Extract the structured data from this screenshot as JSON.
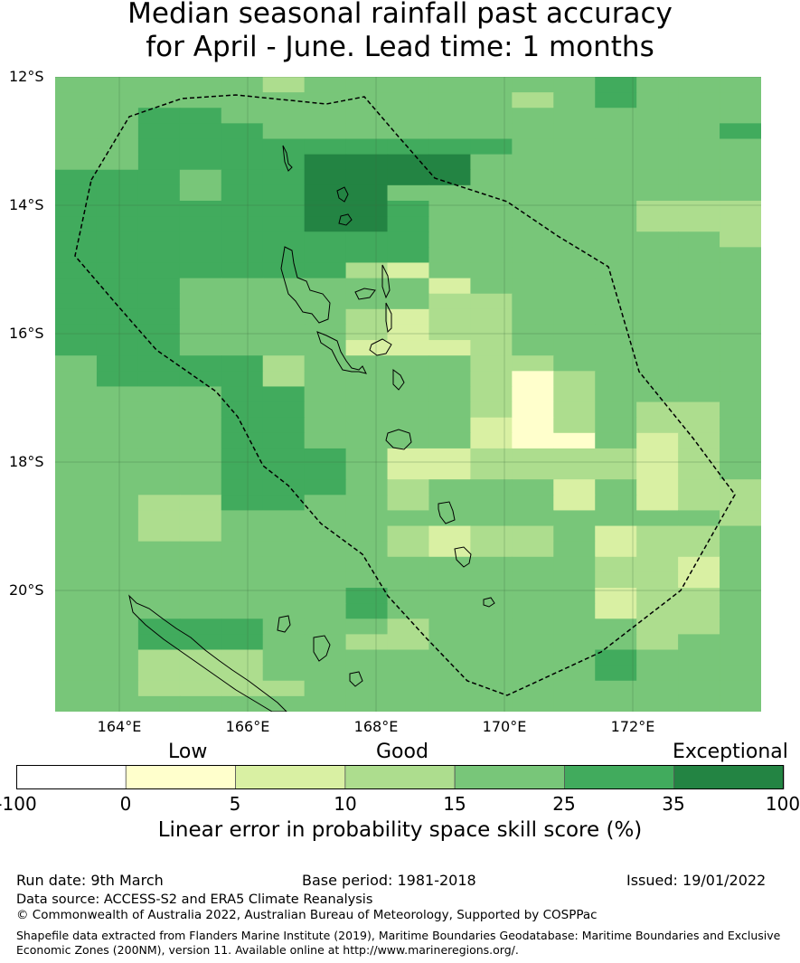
{
  "title": {
    "line1": "Median seasonal rainfall past accuracy",
    "line2": "for April - June. Lead time: 1 months"
  },
  "map": {
    "lat_labels": [
      "12°S",
      "14°S",
      "16°S",
      "18°S",
      "20°S"
    ],
    "lon_labels": [
      "164°E",
      "166°E",
      "168°E",
      "170°E",
      "172°E"
    ],
    "grid_lon_start": 163.0,
    "grid_lat_start": -11.5,
    "cell_deg": 0.83,
    "skill_grid": [
      [
        25,
        25,
        25,
        25,
        25,
        15,
        25,
        25,
        25,
        25,
        25,
        25,
        25,
        35,
        25,
        25,
        25
      ],
      [
        25,
        25,
        25,
        25,
        25,
        25,
        25,
        25,
        25,
        25,
        25,
        15,
        25,
        35,
        25,
        25,
        25
      ],
      [
        25,
        25,
        35,
        35,
        25,
        25,
        25,
        25,
        25,
        25,
        25,
        25,
        25,
        25,
        25,
        25,
        25
      ],
      [
        25,
        25,
        35,
        35,
        35,
        25,
        25,
        25,
        25,
        25,
        25,
        25,
        25,
        25,
        25,
        25,
        35
      ],
      [
        25,
        25,
        35,
        35,
        35,
        35,
        35,
        35,
        35,
        35,
        35,
        25,
        25,
        25,
        25,
        25,
        25
      ],
      [
        25,
        25,
        35,
        35,
        35,
        35,
        100,
        100,
        100,
        100,
        25,
        25,
        25,
        25,
        25,
        25,
        25
      ],
      [
        35,
        35,
        35,
        25,
        35,
        35,
        100,
        100,
        100,
        100,
        25,
        25,
        25,
        25,
        25,
        25,
        25
      ],
      [
        35,
        35,
        35,
        25,
        35,
        35,
        100,
        100,
        25,
        25,
        25,
        25,
        25,
        25,
        25,
        25,
        25
      ],
      [
        35,
        35,
        35,
        35,
        35,
        35,
        100,
        100,
        35,
        25,
        25,
        25,
        25,
        25,
        15,
        15,
        15
      ],
      [
        35,
        35,
        35,
        35,
        35,
        35,
        100,
        100,
        35,
        25,
        25,
        25,
        25,
        25,
        15,
        15,
        15
      ],
      [
        35,
        35,
        35,
        35,
        35,
        35,
        35,
        35,
        35,
        25,
        25,
        25,
        25,
        25,
        25,
        25,
        15
      ],
      [
        35,
        35,
        35,
        35,
        35,
        35,
        35,
        35,
        35,
        25,
        25,
        25,
        25,
        25,
        25,
        25,
        25
      ],
      [
        35,
        35,
        35,
        35,
        35,
        35,
        35,
        15,
        10,
        25,
        25,
        25,
        25,
        25,
        25,
        25,
        25
      ],
      [
        35,
        35,
        35,
        25,
        25,
        25,
        25,
        25,
        25,
        10,
        25,
        25,
        25,
        25,
        25,
        25,
        25
      ],
      [
        35,
        35,
        35,
        25,
        25,
        25,
        25,
        25,
        25,
        15,
        15,
        25,
        25,
        25,
        25,
        25,
        25
      ],
      [
        35,
        35,
        35,
        25,
        25,
        25,
        25,
        15,
        10,
        15,
        15,
        25,
        25,
        25,
        25,
        25,
        25
      ],
      [
        35,
        35,
        35,
        25,
        25,
        25,
        25,
        15,
        10,
        15,
        15,
        25,
        25,
        25,
        25,
        25,
        25
      ],
      [
        35,
        35,
        35,
        25,
        25,
        25,
        25,
        10,
        10,
        10,
        15,
        25,
        25,
        25,
        25,
        25,
        25
      ],
      [
        25,
        35,
        35,
        35,
        35,
        15,
        25,
        25,
        25,
        25,
        15,
        15,
        25,
        25,
        25,
        25,
        25
      ],
      [
        25,
        35,
        35,
        35,
        35,
        15,
        25,
        25,
        25,
        25,
        15,
        5,
        15,
        25,
        25,
        25,
        25
      ],
      [
        25,
        25,
        25,
        25,
        35,
        35,
        25,
        25,
        25,
        25,
        15,
        5,
        15,
        25,
        25,
        25,
        25
      ],
      [
        25,
        25,
        25,
        25,
        35,
        35,
        25,
        25,
        25,
        25,
        15,
        5,
        15,
        25,
        15,
        15,
        25
      ],
      [
        25,
        25,
        25,
        25,
        35,
        35,
        25,
        25,
        25,
        25,
        10,
        5,
        15,
        25,
        15,
        15,
        25
      ],
      [
        25,
        25,
        25,
        25,
        35,
        35,
        25,
        25,
        25,
        25,
        10,
        5,
        5,
        25,
        10,
        15,
        25
      ],
      [
        25,
        25,
        25,
        25,
        35,
        35,
        35,
        25,
        10,
        10,
        15,
        15,
        15,
        15,
        10,
        15,
        25
      ],
      [
        25,
        25,
        25,
        25,
        35,
        35,
        35,
        25,
        10,
        10,
        15,
        15,
        15,
        15,
        10,
        15,
        25
      ],
      [
        25,
        25,
        25,
        25,
        35,
        35,
        35,
        25,
        15,
        25,
        25,
        25,
        10,
        25,
        10,
        15,
        15
      ],
      [
        25,
        25,
        15,
        15,
        35,
        35,
        25,
        25,
        15,
        25,
        25,
        25,
        10,
        25,
        10,
        15,
        15
      ],
      [
        25,
        25,
        15,
        15,
        25,
        25,
        25,
        25,
        25,
        25,
        25,
        25,
        25,
        25,
        25,
        25,
        15
      ],
      [
        25,
        25,
        15,
        15,
        25,
        25,
        25,
        25,
        15,
        10,
        15,
        15,
        25,
        10,
        15,
        15,
        25
      ],
      [
        25,
        25,
        25,
        25,
        25,
        25,
        25,
        25,
        15,
        10,
        15,
        15,
        25,
        10,
        15,
        15,
        25
      ],
      [
        25,
        25,
        25,
        25,
        25,
        25,
        25,
        25,
        25,
        25,
        25,
        25,
        25,
        15,
        15,
        10,
        25
      ],
      [
        25,
        25,
        25,
        25,
        25,
        25,
        25,
        25,
        25,
        25,
        25,
        25,
        25,
        15,
        15,
        10,
        25
      ],
      [
        25,
        25,
        25,
        25,
        25,
        25,
        25,
        35,
        25,
        25,
        25,
        25,
        25,
        10,
        15,
        15,
        25
      ],
      [
        25,
        25,
        25,
        25,
        25,
        25,
        25,
        35,
        25,
        25,
        25,
        25,
        25,
        10,
        15,
        15,
        25
      ],
      [
        25,
        25,
        35,
        35,
        35,
        25,
        25,
        25,
        15,
        25,
        25,
        25,
        25,
        25,
        15,
        15,
        25
      ],
      [
        25,
        25,
        35,
        35,
        35,
        25,
        25,
        15,
        15,
        25,
        25,
        25,
        25,
        25,
        15,
        25,
        25
      ],
      [
        25,
        25,
        15,
        15,
        15,
        25,
        25,
        25,
        25,
        25,
        25,
        25,
        25,
        35,
        25,
        25,
        25
      ],
      [
        25,
        25,
        15,
        15,
        15,
        25,
        25,
        25,
        25,
        25,
        25,
        25,
        25,
        35,
        25,
        25,
        25
      ],
      [
        25,
        25,
        15,
        15,
        15,
        15,
        25,
        25,
        25,
        25,
        25,
        25,
        25,
        25,
        25,
        25,
        25
      ],
      [
        25,
        25,
        25,
        25,
        25,
        25,
        25,
        25,
        25,
        25,
        25,
        25,
        25,
        25,
        25,
        25,
        25
      ]
    ]
  },
  "colorbar": {
    "categories": [
      "Low",
      "Good",
      "Exceptional"
    ],
    "ticks": [
      "-100",
      "0",
      "5",
      "10",
      "15",
      "25",
      "35",
      "100"
    ],
    "colors": [
      "#ffffff",
      "#ffffcc",
      "#d9f0a3",
      "#addd8e",
      "#78c679",
      "#41ab5d",
      "#238443"
    ],
    "title": "Linear error in probability space skill score (%)"
  },
  "footer": {
    "run_date": "Run date: 9th March",
    "base_period": "Base period: 1981-2018",
    "issued": "Issued: 19/01/2022",
    "data_source": "Data source: ACCESS-S2 and ERA5 Climate Reanalysis",
    "copyright": "© Commonwealth of Australia 2022, Australian Bureau of Meteorology, Supported by COSPPac",
    "shapefile_line1": "Shapefile data extracted from Flanders Marine Institute (2019), Maritime Boundaries Geodatabase: Maritime Boundaries and Exclusive",
    "shapefile_line2": "Economic Zones (200NM), version 11. Available online at http://www.marineregions.org/."
  }
}
